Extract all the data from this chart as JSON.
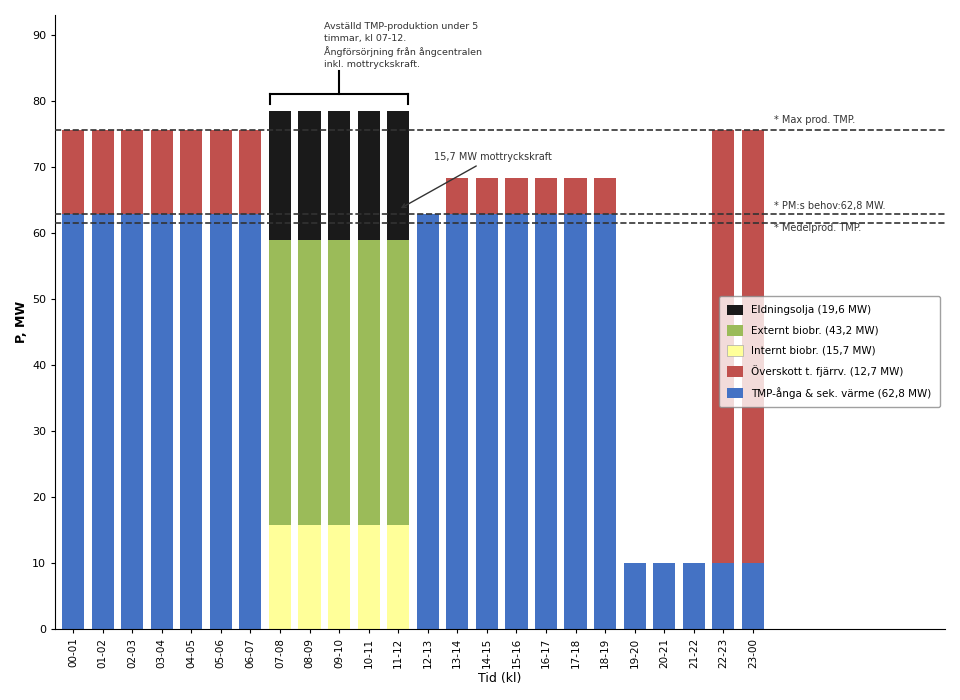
{
  "title": "",
  "ylabel": "P, MW",
  "xlabel": "Tid (kl)",
  "yticks": [
    0,
    10,
    20,
    30,
    40,
    50,
    60,
    70,
    80,
    90
  ],
  "ylim": [
    0,
    93
  ],
  "hours": [
    "00-01",
    "01-02",
    "02-03",
    "03-04",
    "04-05",
    "05-06",
    "06-07",
    "07-08",
    "08-09",
    "09-10",
    "10-11",
    "11-12",
    "12-13",
    "13-14",
    "14-15",
    "15-16",
    "16-17",
    "17-18",
    "18-19",
    "19-20",
    "20-21",
    "21-22",
    "22-23",
    "23-00"
  ],
  "tmp_steam": [
    62.8,
    62.8,
    62.8,
    62.8,
    62.8,
    62.8,
    62.8,
    0,
    0,
    0,
    0,
    0,
    62.8,
    62.8,
    62.8,
    62.8,
    62.8,
    62.8,
    62.8,
    10,
    10,
    10,
    10,
    10
  ],
  "overskott": [
    12.7,
    12.7,
    12.7,
    12.7,
    12.7,
    12.7,
    12.7,
    0,
    0,
    0,
    0,
    0,
    0,
    5.5,
    5.5,
    5.5,
    5.5,
    5.5,
    5.5,
    0,
    0,
    0,
    65.5,
    65.5
  ],
  "internt_biobr": [
    0,
    0,
    0,
    0,
    0,
    0,
    0,
    15.7,
    15.7,
    15.7,
    15.7,
    15.7,
    0,
    0,
    0,
    0,
    0,
    0,
    0,
    0,
    0,
    0,
    0,
    0
  ],
  "externt_biobr": [
    0,
    0,
    0,
    0,
    0,
    0,
    0,
    43.2,
    43.2,
    43.2,
    43.2,
    43.2,
    0,
    0,
    0,
    0,
    0,
    0,
    0,
    0,
    0,
    0,
    0,
    0
  ],
  "eldningsolja": [
    0,
    0,
    0,
    0,
    0,
    0,
    0,
    19.6,
    19.6,
    19.6,
    19.6,
    19.6,
    0,
    0,
    0,
    0,
    0,
    0,
    0,
    0,
    0,
    0,
    0,
    0
  ],
  "line_max_tmp": 75.5,
  "line_pm_behov": 62.8,
  "line_medel_tmp": 61.5,
  "color_tmp_steam": "#4472c4",
  "color_overskott": "#c0504d",
  "color_internt": "#ffff99",
  "color_externt": "#9bbb59",
  "color_eldning": "#1a1a1a",
  "annotation_text": "Avställd TMP-produktion under 5\ntimmar, kl 07-12.\nÅngförsörjning från ångcentralen\ninkl. mottryckskraft.",
  "annotation_label": "15,7 MW mottryckskraft",
  "label_max": "* Max prod. TMP.",
  "label_pm": "* PM:s behov:62,8 MW.",
  "label_medel": "* Medelprod. TMP.",
  "legend_eldning": "Eldningsolja (19,6 MW)",
  "legend_externt": "Externt biobr. (43,2 MW)",
  "legend_internt": "Internt biobr. (15,7 MW)",
  "legend_overskott": "Överskott t. fjärrv. (12,7 MW)",
  "legend_tmp": "TMP-ånga & sek. värme (62,8 MW)",
  "background_color": "#ffffff",
  "fig_width": 9.6,
  "fig_height": 7.0
}
